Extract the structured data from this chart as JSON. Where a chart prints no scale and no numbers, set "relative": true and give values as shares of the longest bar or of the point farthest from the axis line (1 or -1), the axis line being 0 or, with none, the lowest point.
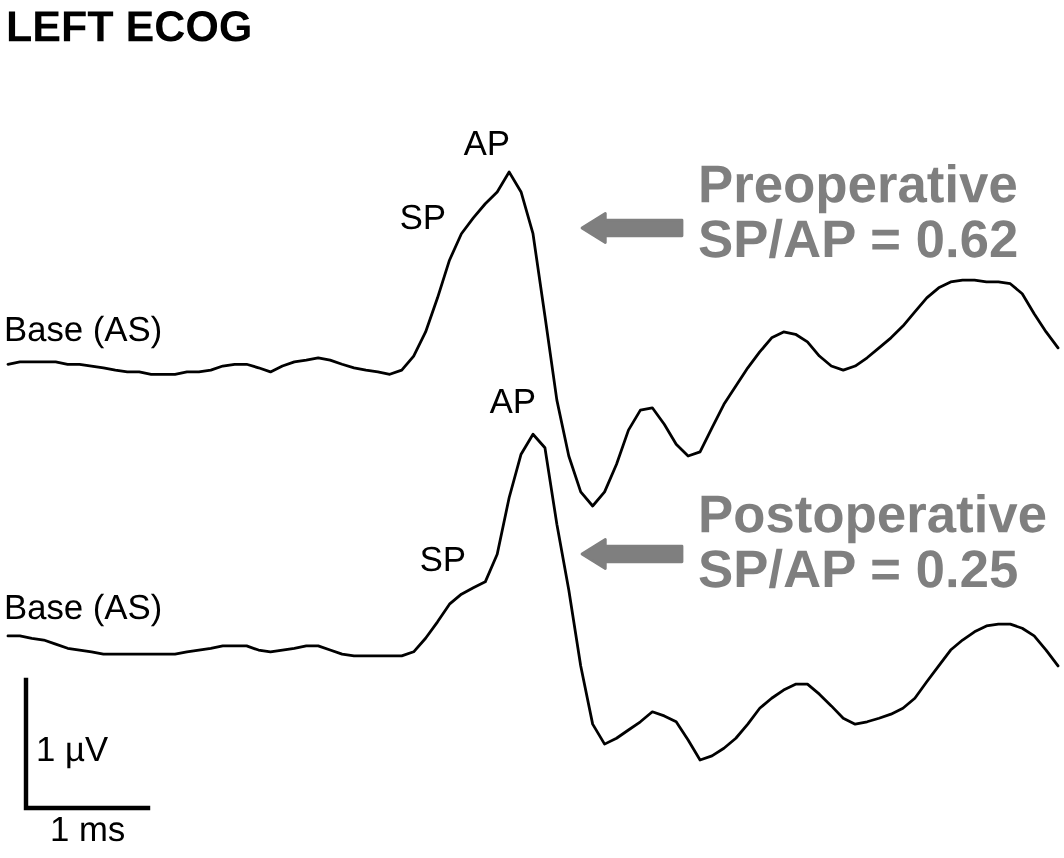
{
  "chart_data": {
    "type": "line",
    "title": "LEFT ECOG",
    "relative": true,
    "categories": [
      null,
      null,
      null,
      null,
      null,
      null,
      null,
      null,
      null,
      null,
      null,
      null,
      null,
      null,
      null,
      null,
      null,
      null,
      null,
      null,
      null,
      null,
      null,
      null,
      null,
      null,
      null,
      null,
      null,
      null,
      null,
      null,
      null,
      null,
      null,
      null,
      null,
      null,
      null,
      null,
      null,
      null,
      null,
      null,
      null,
      null,
      null,
      null,
      null,
      null,
      null,
      null,
      null,
      null,
      null,
      null,
      null,
      null,
      null,
      null,
      null,
      null,
      null,
      null,
      null,
      null,
      null,
      null,
      null,
      null,
      null,
      null,
      null,
      null,
      null,
      null,
      null,
      null,
      null,
      null,
      null,
      null,
      null,
      null,
      null,
      null,
      null,
      null,
      null
    ],
    "series": [
      {
        "color": "#000000",
        "values": [
          0.673,
          0.677,
          0.677,
          0.677,
          0.677,
          0.673,
          0.673,
          0.67,
          0.667,
          0.663,
          0.66,
          0.66,
          0.656,
          0.656,
          0.656,
          0.66,
          0.66,
          0.663,
          0.67,
          0.673,
          0.673,
          0.667,
          0.66,
          0.67,
          0.677,
          0.68,
          0.684,
          0.68,
          0.673,
          0.667,
          0.663,
          0.66,
          0.656,
          0.663,
          0.687,
          0.728,
          0.786,
          0.85,
          0.895,
          0.922,
          0.946,
          0.966,
          1,
          0.966,
          0.895,
          0.755,
          0.612,
          0.517,
          0.456,
          0.432,
          0.456,
          0.503,
          0.561,
          0.595,
          0.599,
          0.571,
          0.537,
          0.517,
          0.524,
          0.565,
          0.605,
          0.636,
          0.667,
          0.694,
          0.718,
          0.728,
          0.724,
          0.711,
          0.687,
          0.67,
          0.663,
          0.67,
          0.684,
          0.701,
          0.718,
          0.738,
          0.762,
          0.786,
          0.803,
          0.813,
          0.816,
          0.816,
          0.813,
          0.813,
          0.81,
          0.793,
          0.759,
          0.728,
          0.701
        ]
      },
      {
        "color": "#000000",
        "values": [
          0.211,
          0.211,
          0.207,
          0.204,
          0.197,
          0.19,
          0.187,
          0.184,
          0.18,
          0.18,
          0.18,
          0.18,
          0.18,
          0.18,
          0.18,
          0.184,
          0.187,
          0.19,
          0.194,
          0.194,
          0.194,
          0.187,
          0.184,
          0.187,
          0.19,
          0.194,
          0.194,
          0.187,
          0.18,
          0.177,
          0.177,
          0.177,
          0.177,
          0.177,
          0.184,
          0.207,
          0.235,
          0.265,
          0.282,
          0.293,
          0.303,
          0.35,
          0.446,
          0.52,
          0.554,
          0.531,
          0.401,
          0.289,
          0.16,
          0.061,
          0.027,
          0.037,
          0.051,
          0.065,
          0.082,
          0.075,
          0.065,
          0.034,
          0,
          0.007,
          0.02,
          0.037,
          0.061,
          0.088,
          0.105,
          0.119,
          0.129,
          0.129,
          0.112,
          0.092,
          0.071,
          0.061,
          0.065,
          0.071,
          0.078,
          0.088,
          0.105,
          0.133,
          0.16,
          0.187,
          0.204,
          0.218,
          0.228,
          0.231,
          0.231,
          0.224,
          0.211,
          0.187,
          0.16
        ]
      }
    ],
    "annotations": [
      "Base (AS)",
      "SP",
      "AP",
      "Base (AS)",
      "SP",
      "AP",
      "Preoperative\nSP/AP = 0.62",
      "Postoperative\nSP/AP = 0.25",
      "1 µV",
      "1 ms"
    ]
  }
}
